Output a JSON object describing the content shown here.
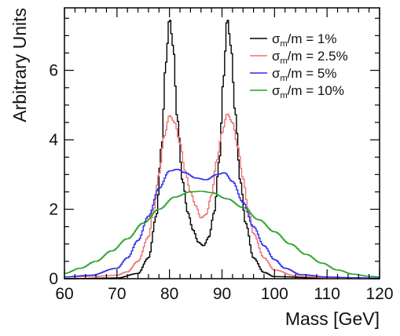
{
  "chart_data": {
    "type": "line",
    "xlabel": "Mass [GeV]",
    "ylabel": "Arbitrary Units",
    "xlim": [
      60,
      120
    ],
    "ylim": [
      0,
      7.8
    ],
    "xticks": [
      60,
      70,
      80,
      90,
      100,
      110,
      120
    ],
    "yticks": [
      0,
      2,
      4,
      6
    ],
    "grid": false,
    "legend_position": "top-right",
    "series": [
      {
        "name": "σ_m/m = 1%",
        "color": "#000000",
        "x": [
          60,
          70,
          74,
          76,
          77.5,
          78.5,
          79.3,
          80,
          80.7,
          81.5,
          82.5,
          83.5,
          84.5,
          85.5,
          86.5,
          87.5,
          88.5,
          89.5,
          90.3,
          91,
          91.7,
          92.5,
          93.5,
          94.5,
          96,
          98,
          100,
          110,
          120
        ],
        "values": [
          0.0,
          0.02,
          0.15,
          0.6,
          1.8,
          3.8,
          6.2,
          7.5,
          6.7,
          4.6,
          2.8,
          1.9,
          1.4,
          1.05,
          0.95,
          1.2,
          1.9,
          3.4,
          5.8,
          7.5,
          6.7,
          4.8,
          2.8,
          1.6,
          0.6,
          0.18,
          0.06,
          0.01,
          0.0
        ]
      },
      {
        "name": "σ_m/m = 2.5%",
        "color": "#f07070",
        "x": [
          60,
          66,
          70,
          72,
          74,
          76,
          77,
          78,
          79,
          80,
          81,
          82,
          83,
          84,
          85,
          86,
          87,
          88,
          89,
          90,
          91,
          92,
          93,
          94,
          95,
          96,
          98,
          100,
          104,
          110,
          120
        ],
        "values": [
          0.05,
          0.07,
          0.1,
          0.2,
          0.5,
          1.2,
          2.0,
          3.0,
          4.1,
          4.7,
          4.5,
          3.9,
          3.1,
          2.5,
          2.1,
          1.75,
          1.85,
          2.4,
          3.4,
          4.2,
          4.75,
          4.5,
          3.8,
          2.9,
          2.0,
          1.3,
          0.6,
          0.25,
          0.08,
          0.03,
          0.02
        ]
      },
      {
        "name": "σ_m/m = 5%",
        "color": "#2a2af0",
        "x": [
          60,
          65,
          70,
          72,
          74,
          76,
          78,
          80,
          81.5,
          83,
          85,
          87,
          89,
          90.5,
          92,
          94,
          96,
          98,
          100,
          102,
          105,
          110,
          115,
          120
        ],
        "values": [
          0.05,
          0.1,
          0.3,
          0.6,
          1.1,
          1.8,
          2.6,
          3.1,
          3.15,
          3.05,
          2.9,
          2.85,
          3.0,
          3.05,
          2.8,
          2.2,
          1.5,
          0.95,
          0.55,
          0.3,
          0.12,
          0.05,
          0.03,
          0.02
        ]
      },
      {
        "name": "σ_m/m = 10%",
        "color": "#22a022",
        "x": [
          60,
          63,
          66,
          69,
          72,
          75,
          78,
          81,
          84,
          86,
          88,
          91,
          94,
          97,
          100,
          103,
          106,
          109,
          112,
          115,
          118,
          120
        ],
        "values": [
          0.15,
          0.3,
          0.5,
          0.8,
          1.15,
          1.6,
          2.0,
          2.35,
          2.5,
          2.52,
          2.48,
          2.3,
          2.05,
          1.7,
          1.35,
          1.0,
          0.7,
          0.45,
          0.25,
          0.13,
          0.07,
          0.05
        ]
      }
    ]
  }
}
